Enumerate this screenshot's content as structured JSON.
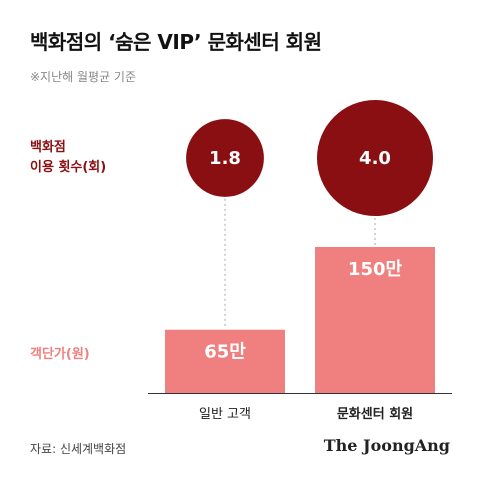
{
  "chart_data": {
    "type": "bar",
    "title": "백화점의 ‘숨은 VIP’ 문화센터 회원",
    "subtitle": "※지난해 월평균 기준",
    "categories": [
      "일반 고객",
      "문화센터 회원"
    ],
    "series": [
      {
        "name": "백화점 이용 횟수(회)",
        "name_lines": [
          "백화점",
          "이용 횟수(회)"
        ],
        "values": [
          1.8,
          4.0
        ],
        "labels": [
          "1.8",
          "4.0"
        ],
        "color": "#8a0f12"
      },
      {
        "name": "객단가(원)",
        "values": [
          65,
          150
        ],
        "labels": [
          "65만",
          "150만"
        ],
        "color": "#f08080"
      }
    ],
    "ylim": [
      0,
      150
    ],
    "grid": false,
    "source": "자료: 신세계백화점",
    "publisher": "The JoongAng"
  }
}
